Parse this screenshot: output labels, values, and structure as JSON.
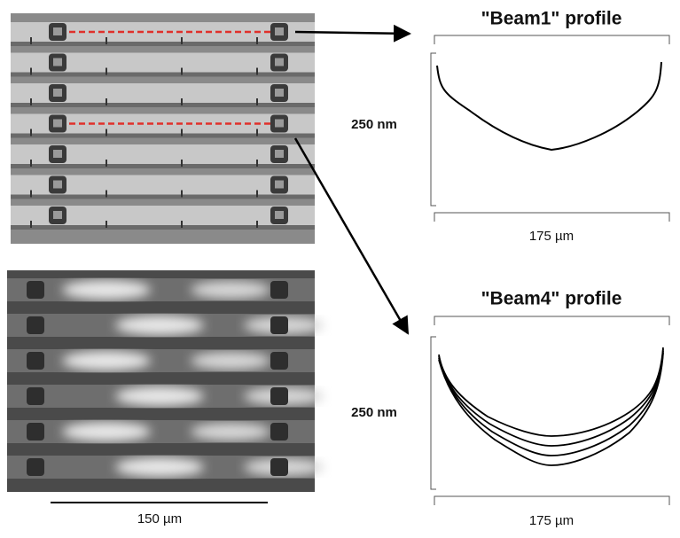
{
  "panels": [
    {
      "title": "\"Beam1\" profile",
      "height_label": "250 nm",
      "width_label": "175 µm"
    },
    {
      "title": "\"Beam4\" profile",
      "height_label": "250 nm",
      "width_label": "175 µm"
    }
  ],
  "scale_bar": {
    "label": "150 µm"
  }
}
